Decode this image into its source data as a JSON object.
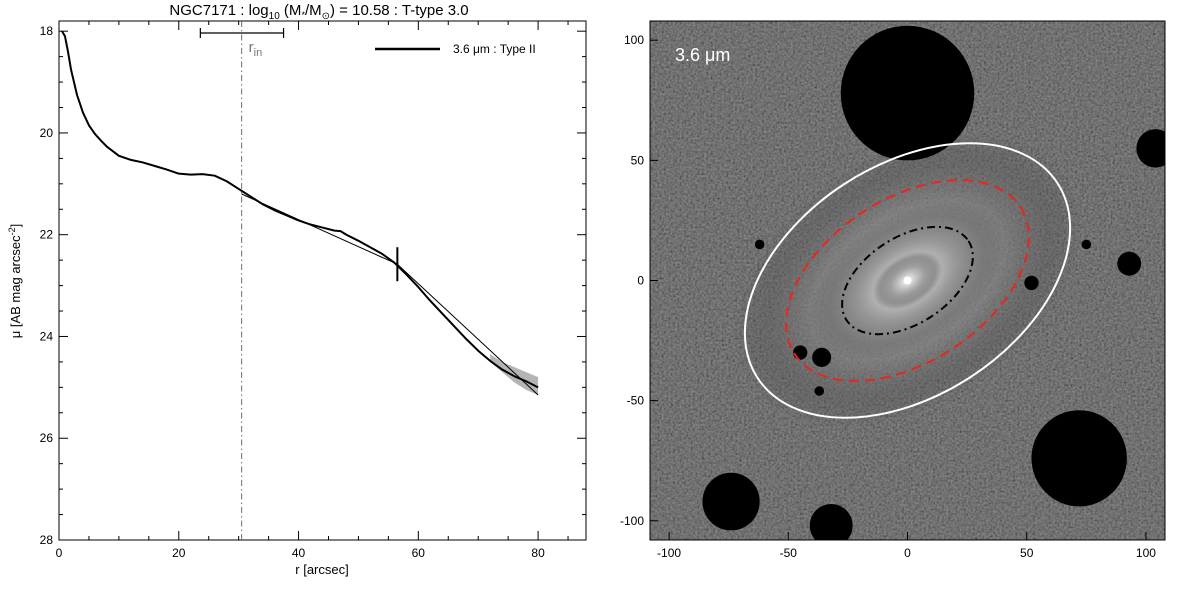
{
  "figure": {
    "title_parts": {
      "a": "NGC7171 : log",
      "b": "10",
      "c": " (M",
      "d": "*",
      "e": "/M",
      "f": "⊙",
      "g": ") = 10.58 : T-type 3.0"
    },
    "colors": {
      "profile": "#000000",
      "error_band": "#b4b4b4",
      "inner_radius_line": "#6e6e6e",
      "outer_ellipse": "#ffffff",
      "break_ellipse": "#e8261f",
      "inner_ellipse": "#000000"
    }
  },
  "chart_data": [
    {
      "type": "line",
      "xlabel": "r [arcsec]",
      "ylabel_parts": {
        "main": "μ [AB mag arcsec",
        "sup": "-2",
        "end": "]"
      },
      "xlim": [
        0,
        88
      ],
      "ylim": [
        28,
        17.8
      ],
      "y_inverted": true,
      "xticks": [
        0,
        20,
        40,
        60,
        80
      ],
      "xtick_labels": [
        "0",
        "20",
        "40",
        "60",
        "80"
      ],
      "yticks": [
        18,
        20,
        22,
        24,
        26,
        28
      ],
      "ytick_labels": [
        "18",
        "20",
        "22",
        "24",
        "26",
        "28"
      ],
      "grid": false,
      "legend": {
        "position": "top-right",
        "entries": [
          "3.6 μm : Type II"
        ]
      },
      "series": [
        {
          "name": "3.6 μm : Type II",
          "x": [
            0.5,
            1,
            1.5,
            2,
            3,
            4,
            5,
            6,
            7,
            8,
            10,
            12,
            14,
            16,
            18,
            20,
            22,
            24,
            26,
            28,
            30,
            32,
            34,
            36,
            38,
            40,
            42,
            44,
            46,
            47,
            48,
            50,
            52,
            54,
            56,
            58,
            60,
            62,
            64,
            66,
            68,
            70,
            72,
            74,
            76,
            78,
            80
          ],
          "y": [
            18.0,
            18.1,
            18.4,
            18.75,
            19.25,
            19.6,
            19.85,
            20.02,
            20.15,
            20.27,
            20.45,
            20.53,
            20.58,
            20.65,
            20.72,
            20.8,
            20.82,
            20.81,
            20.84,
            20.95,
            21.1,
            21.25,
            21.4,
            21.52,
            21.62,
            21.72,
            21.8,
            21.86,
            21.92,
            21.93,
            22.0,
            22.12,
            22.25,
            22.38,
            22.55,
            22.78,
            23.03,
            23.3,
            23.55,
            23.8,
            24.05,
            24.28,
            24.48,
            24.65,
            24.78,
            24.88,
            25.0
          ]
        }
      ],
      "fit_inner": {
        "x": [
          30.5,
          56.5
        ],
        "y": [
          21.2,
          22.58
        ]
      },
      "fit_outer": {
        "x": [
          56.5,
          80
        ],
        "y": [
          22.58,
          25.15
        ]
      },
      "error_band": {
        "x": [
          72,
          74,
          76,
          78,
          80
        ],
        "y_upper": [
          24.35,
          24.5,
          24.6,
          24.7,
          24.8
        ],
        "y_lower": [
          24.5,
          24.7,
          24.9,
          25.05,
          25.15
        ]
      },
      "inner_radius": {
        "x": 30.5,
        "label": "r",
        "label_sub": "in"
      },
      "inner_radius_range": [
        23.6,
        37.5
      ],
      "break_radius": {
        "x": 56.5,
        "y": 22.58
      }
    },
    {
      "type": "image",
      "caption": "3.6 μm",
      "xlim": [
        -108,
        108
      ],
      "ylim": [
        -108,
        108
      ],
      "xticks": [
        -100,
        -50,
        0,
        50,
        100
      ],
      "xtick_labels": [
        "-100",
        "-50",
        "0",
        "50",
        "100"
      ],
      "yticks": [
        -100,
        -50,
        0,
        50,
        100
      ],
      "ytick_labels": [
        "-100",
        "-50",
        "0",
        "50",
        "100"
      ],
      "ellipses": [
        {
          "name": "outer-isophote",
          "cx": 0,
          "cy": 0,
          "a": 75,
          "b": 48,
          "angle_deg": 33,
          "style": "solid"
        },
        {
          "name": "break-radius",
          "cx": 0,
          "cy": 0,
          "a": 56.5,
          "b": 34,
          "angle_deg": 33,
          "style": "dashed"
        },
        {
          "name": "inner-radius",
          "cx": 0,
          "cy": 0,
          "a": 30.5,
          "b": 18,
          "angle_deg": 33,
          "style": "dash-dot"
        }
      ],
      "masked_sources": [
        {
          "x": 0,
          "y": 78,
          "r": 28
        },
        {
          "x": -36,
          "y": -32,
          "r": 4
        },
        {
          "x": -74,
          "y": -92,
          "r": 12
        },
        {
          "x": -32,
          "y": -102,
          "r": 9
        },
        {
          "x": 72,
          "y": -74,
          "r": 20
        },
        {
          "x": 104,
          "y": 55,
          "r": 8
        },
        {
          "x": 93,
          "y": 7,
          "r": 5
        },
        {
          "x": 52,
          "y": -1,
          "r": 3
        },
        {
          "x": -45,
          "y": -30,
          "r": 3
        },
        {
          "x": -37,
          "y": -46,
          "r": 2
        },
        {
          "x": 75,
          "y": 15,
          "r": 2
        },
        {
          "x": -62,
          "y": 15,
          "r": 2
        }
      ]
    }
  ]
}
